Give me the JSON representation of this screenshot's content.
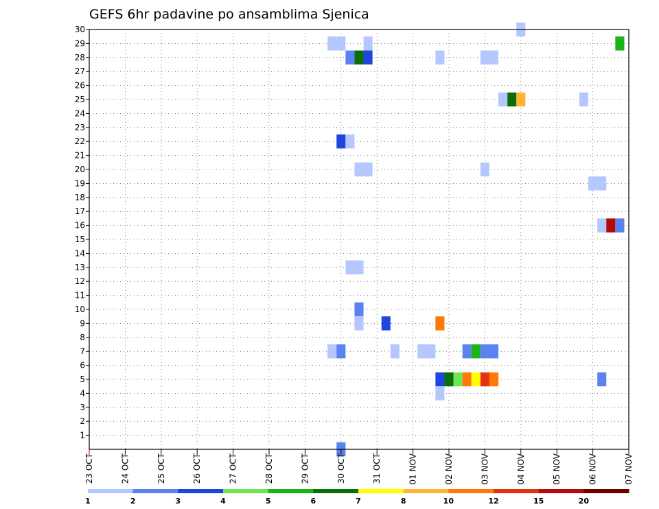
{
  "chart_data": {
    "type": "heatmap",
    "title": "GEFS 6hr padavine po ansamblima Sjenica",
    "xlabel": "",
    "ylabel": "",
    "x_tick_labels": [
      "23 OCT",
      "24 OCT",
      "25 OCT",
      "26 OCT",
      "27 OCT",
      "28 OCT",
      "29 OCT",
      "30 OCT",
      "31 OCT",
      "01 NOV",
      "02 NOV",
      "03 NOV",
      "04 NOV",
      "05 NOV",
      "06 NOV",
      "07 NOV"
    ],
    "x_unit": "6-hour step from 23 OCT 00z",
    "xlim": [
      0,
      60
    ],
    "y_tick_labels": [
      "1",
      "2",
      "3",
      "4",
      "5",
      "6",
      "7",
      "8",
      "9",
      "10",
      "11",
      "12",
      "13",
      "14",
      "15",
      "16",
      "17",
      "18",
      "19",
      "20",
      "21",
      "22",
      "23",
      "24",
      "25",
      "26",
      "27",
      "28",
      "29",
      "30"
    ],
    "ylim": [
      0,
      30
    ],
    "grid": true,
    "colorbar": {
      "tick_labels": [
        "1",
        "2",
        "3",
        "4",
        "5",
        "6",
        "7",
        "8",
        "10",
        "12",
        "15",
        "20"
      ],
      "colors": [
        "#b4c8ff",
        "#5a82f0",
        "#1e46dc",
        "#6ee650",
        "#19b419",
        "#0a6e0a",
        "#ffff00",
        "#ffb432",
        "#ff780a",
        "#e63214",
        "#b40a0a",
        "#6e0000"
      ]
    },
    "cells": [
      {
        "x": 27,
        "y": 29,
        "v": 1
      },
      {
        "x": 28,
        "y": 29,
        "v": 1
      },
      {
        "x": 31,
        "y": 29,
        "v": 1
      },
      {
        "x": 29,
        "y": 28,
        "v": 2
      },
      {
        "x": 30,
        "y": 28,
        "v": 6
      },
      {
        "x": 31,
        "y": 28,
        "v": 3
      },
      {
        "x": 39,
        "y": 28,
        "v": 1
      },
      {
        "x": 44,
        "y": 28,
        "v": 1
      },
      {
        "x": 45,
        "y": 28,
        "v": 1
      },
      {
        "x": 48,
        "y": 30,
        "v": 1
      },
      {
        "x": 59,
        "y": 29,
        "v": 5
      },
      {
        "x": 46,
        "y": 25,
        "v": 1
      },
      {
        "x": 47,
        "y": 25,
        "v": 6
      },
      {
        "x": 48,
        "y": 25,
        "v": 8
      },
      {
        "x": 55,
        "y": 25,
        "v": 1
      },
      {
        "x": 28,
        "y": 22,
        "v": 3
      },
      {
        "x": 29,
        "y": 22,
        "v": 1
      },
      {
        "x": 30,
        "y": 20,
        "v": 1
      },
      {
        "x": 31,
        "y": 20,
        "v": 1
      },
      {
        "x": 44,
        "y": 20,
        "v": 1
      },
      {
        "x": 56,
        "y": 19,
        "v": 1
      },
      {
        "x": 57,
        "y": 19,
        "v": 1
      },
      {
        "x": 57,
        "y": 16,
        "v": 1
      },
      {
        "x": 58,
        "y": 16,
        "v": 15
      },
      {
        "x": 59,
        "y": 16,
        "v": 2
      },
      {
        "x": 29,
        "y": 13,
        "v": 1
      },
      {
        "x": 30,
        "y": 13,
        "v": 1
      },
      {
        "x": 30,
        "y": 10,
        "v": 2
      },
      {
        "x": 30,
        "y": 9,
        "v": 1
      },
      {
        "x": 33,
        "y": 9,
        "v": 3
      },
      {
        "x": 39,
        "y": 9,
        "v": 10
      },
      {
        "x": 27,
        "y": 7,
        "v": 1
      },
      {
        "x": 28,
        "y": 7,
        "v": 2
      },
      {
        "x": 34,
        "y": 7,
        "v": 1
      },
      {
        "x": 37,
        "y": 7,
        "v": 1
      },
      {
        "x": 38,
        "y": 7,
        "v": 1
      },
      {
        "x": 42,
        "y": 7,
        "v": 2
      },
      {
        "x": 43,
        "y": 7,
        "v": 5
      },
      {
        "x": 44,
        "y": 7,
        "v": 2
      },
      {
        "x": 45,
        "y": 7,
        "v": 2
      },
      {
        "x": 39,
        "y": 5,
        "v": 3
      },
      {
        "x": 40,
        "y": 5,
        "v": 6
      },
      {
        "x": 41,
        "y": 5,
        "v": 4
      },
      {
        "x": 42,
        "y": 5,
        "v": 10
      },
      {
        "x": 43,
        "y": 5,
        "v": 7
      },
      {
        "x": 44,
        "y": 5,
        "v": 12
      },
      {
        "x": 45,
        "y": 5,
        "v": 10
      },
      {
        "x": 57,
        "y": 5,
        "v": 2
      },
      {
        "x": 39,
        "y": 4,
        "v": 1
      },
      {
        "x": 28,
        "y": 0,
        "v": 2
      }
    ]
  }
}
